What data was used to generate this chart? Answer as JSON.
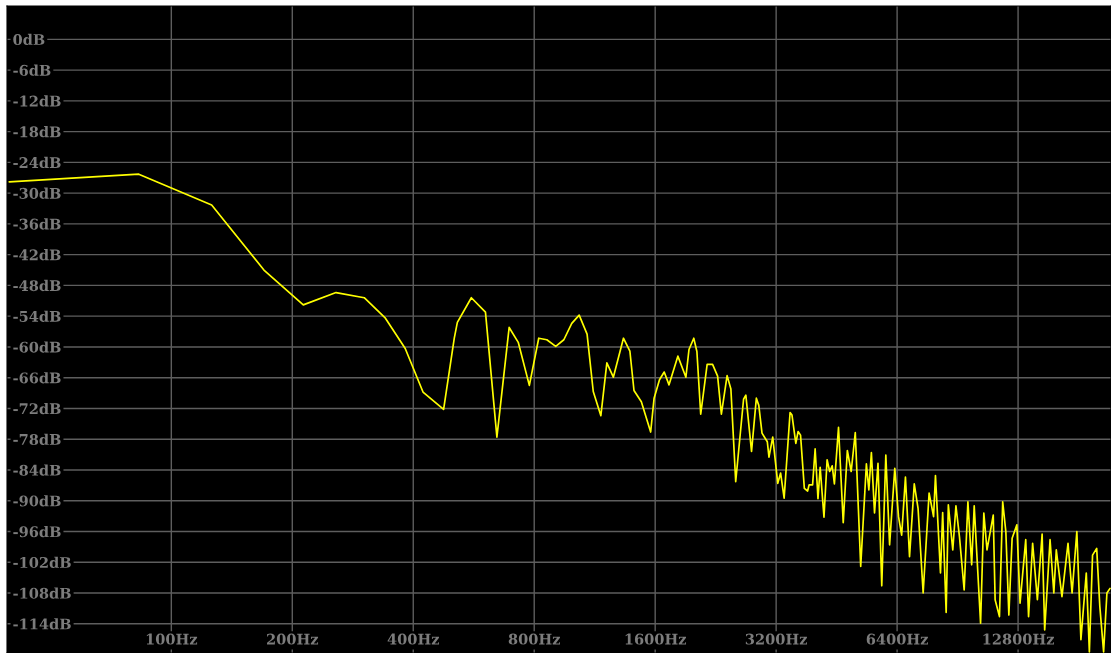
{
  "chart_data": {
    "type": "line",
    "x": [
      39.5,
      83,
      126,
      170,
      213,
      257,
      302,
      341,
      382,
      423,
      476,
      506,
      515,
      558,
      605,
      646,
      693,
      730,
      778,
      821,
      860,
      905,
      948,
      992,
      1035,
      1083,
      1122,
      1172,
      1213,
      1259,
      1334,
      1384,
      1417,
      1478,
      1559,
      1590,
      1640,
      1685,
      1732,
      1822,
      1908,
      1942,
      1996,
      2032,
      2077,
      2155,
      2223,
      2288,
      2338,
      2416,
      2469,
      2538,
      2655,
      2690,
      2779,
      2857,
      2897,
      2951,
      3042,
      3071,
      3138,
      3230,
      3283,
      3350,
      3466,
      3504,
      3582,
      3629,
      3680,
      3761,
      3832,
      3865,
      3943,
      4001,
      4067,
      4118,
      4209,
      4285,
      4349,
      4412,
      4468,
      4575,
      4700,
      4812,
      4919,
      5036,
      5195,
      5367,
      5443,
      5523,
      5623,
      5736,
      5861,
      5999,
      6130,
      6315,
      6452,
      6569,
      6713,
      6872,
      7061,
      7216,
      7430,
      7688,
      7887,
      7973,
      8206,
      8309,
      8477,
      8583,
      8805,
      8965,
      9148,
      9398,
      9602,
      9811,
      9955,
      10325,
      10519,
      10712,
      11102,
      11222,
      11506,
      11720,
      11933,
      12141,
      12371,
      12711,
      12946,
      13374,
      13593,
      13914,
      14297,
      14691,
      14908,
      15374,
      15710,
      15933,
      16459,
      17041,
      17443,
      17924,
      18348,
      18921,
      19258,
      19613,
      20084,
      20447,
      20896,
      21297,
      21679
    ],
    "values": [
      -27.8,
      -26.3,
      -32.3,
      -45,
      -51.8,
      -49.4,
      -50.4,
      -54.4,
      -60.3,
      -68.8,
      -72.2,
      -58.3,
      -55.2,
      -50.4,
      -53.2,
      -77.6,
      -56.2,
      -59.1,
      -67.5,
      -58.3,
      -58.6,
      -59.9,
      -58.6,
      -55.4,
      -53.8,
      -57.5,
      -68.7,
      -73.4,
      -63.1,
      -65.9,
      -58.3,
      -60.8,
      -68.5,
      -70.7,
      -76.6,
      -70,
      -66.4,
      -64.9,
      -67.4,
      -61.8,
      -65.9,
      -60.5,
      -58.3,
      -60.9,
      -73.1,
      -63.4,
      -63.4,
      -65.7,
      -73.1,
      -65.6,
      -68.2,
      -86.3,
      -70.2,
      -69.4,
      -80.4,
      -70,
      -71.4,
      -76.8,
      -78.5,
      -81.5,
      -77.6,
      -86.6,
      -84.6,
      -89.5,
      -72.8,
      -73.3,
      -78.8,
      -76.5,
      -77.2,
      -87.6,
      -88.1,
      -86.9,
      -86.9,
      -79.9,
      -89.6,
      -83.5,
      -93.2,
      -82,
      -84.3,
      -83.2,
      -86.7,
      -75.7,
      -94.3,
      -80.2,
      -84.3,
      -76.7,
      -102.8,
      -82.8,
      -87.9,
      -80.6,
      -92.4,
      -82.7,
      -106.6,
      -81.1,
      -98.6,
      -83.7,
      -93.1,
      -96.7,
      -85.4,
      -100.9,
      -86.7,
      -91.5,
      -108,
      -88.5,
      -93.1,
      -85.1,
      -104.1,
      -92.3,
      -111.8,
      -90.8,
      -99.6,
      -91,
      -97,
      -107.4,
      -90.2,
      -102.5,
      -91,
      -113.9,
      -92.4,
      -99.6,
      -92.8,
      -109.3,
      -112.6,
      -90.2,
      -96,
      -112.3,
      -97.3,
      -94.7,
      -110,
      -97.6,
      -112.6,
      -98.3,
      -109.3,
      -96.5,
      -115.2,
      -97.6,
      -108,
      -99.6,
      -108.7,
      -98.3,
      -108,
      -96,
      -117.1,
      -104.1,
      -119.5,
      -100.6,
      -99.3,
      -110.6,
      -119.5,
      -108,
      -107.1
    ],
    "color": "#ffff00",
    "line_style": "solid",
    "log": "x",
    "grid": true,
    "xlim": [
      39,
      21800
    ],
    "ylim": [
      -119.7,
      6.5
    ],
    "xticks": [
      {
        "value": 100,
        "label": "100Hz"
      },
      {
        "value": 200,
        "label": "200Hz"
      },
      {
        "value": 400,
        "label": "400Hz"
      },
      {
        "value": 800,
        "label": "800Hz"
      },
      {
        "value": 1600,
        "label": "1600Hz"
      },
      {
        "value": 3200,
        "label": "3200Hz"
      },
      {
        "value": 6400,
        "label": "6400Hz"
      },
      {
        "value": 12800,
        "label": "12800Hz"
      }
    ],
    "yticks": [
      {
        "value": 0,
        "label": "0dB"
      },
      {
        "value": -6,
        "label": "-6dB"
      },
      {
        "value": -12,
        "label": "-12dB"
      },
      {
        "value": -18,
        "label": "-18dB"
      },
      {
        "value": -24,
        "label": "-24dB"
      },
      {
        "value": -30,
        "label": "-30dB"
      },
      {
        "value": -36,
        "label": "-36dB"
      },
      {
        "value": -42,
        "label": "-42dB"
      },
      {
        "value": -48,
        "label": "-48dB"
      },
      {
        "value": -54,
        "label": "-54dB"
      },
      {
        "value": -60,
        "label": "-60dB"
      },
      {
        "value": -66,
        "label": "-66dB"
      },
      {
        "value": -72,
        "label": "-72dB"
      },
      {
        "value": -78,
        "label": "-78dB"
      },
      {
        "value": -84,
        "label": "-84dB"
      },
      {
        "value": -90,
        "label": "-90dB"
      },
      {
        "value": -96,
        "label": "-96dB"
      },
      {
        "value": -102,
        "label": "-102dB"
      },
      {
        "value": -108,
        "label": "-108dB"
      },
      {
        "value": -114,
        "label": "-114dB"
      }
    ]
  }
}
